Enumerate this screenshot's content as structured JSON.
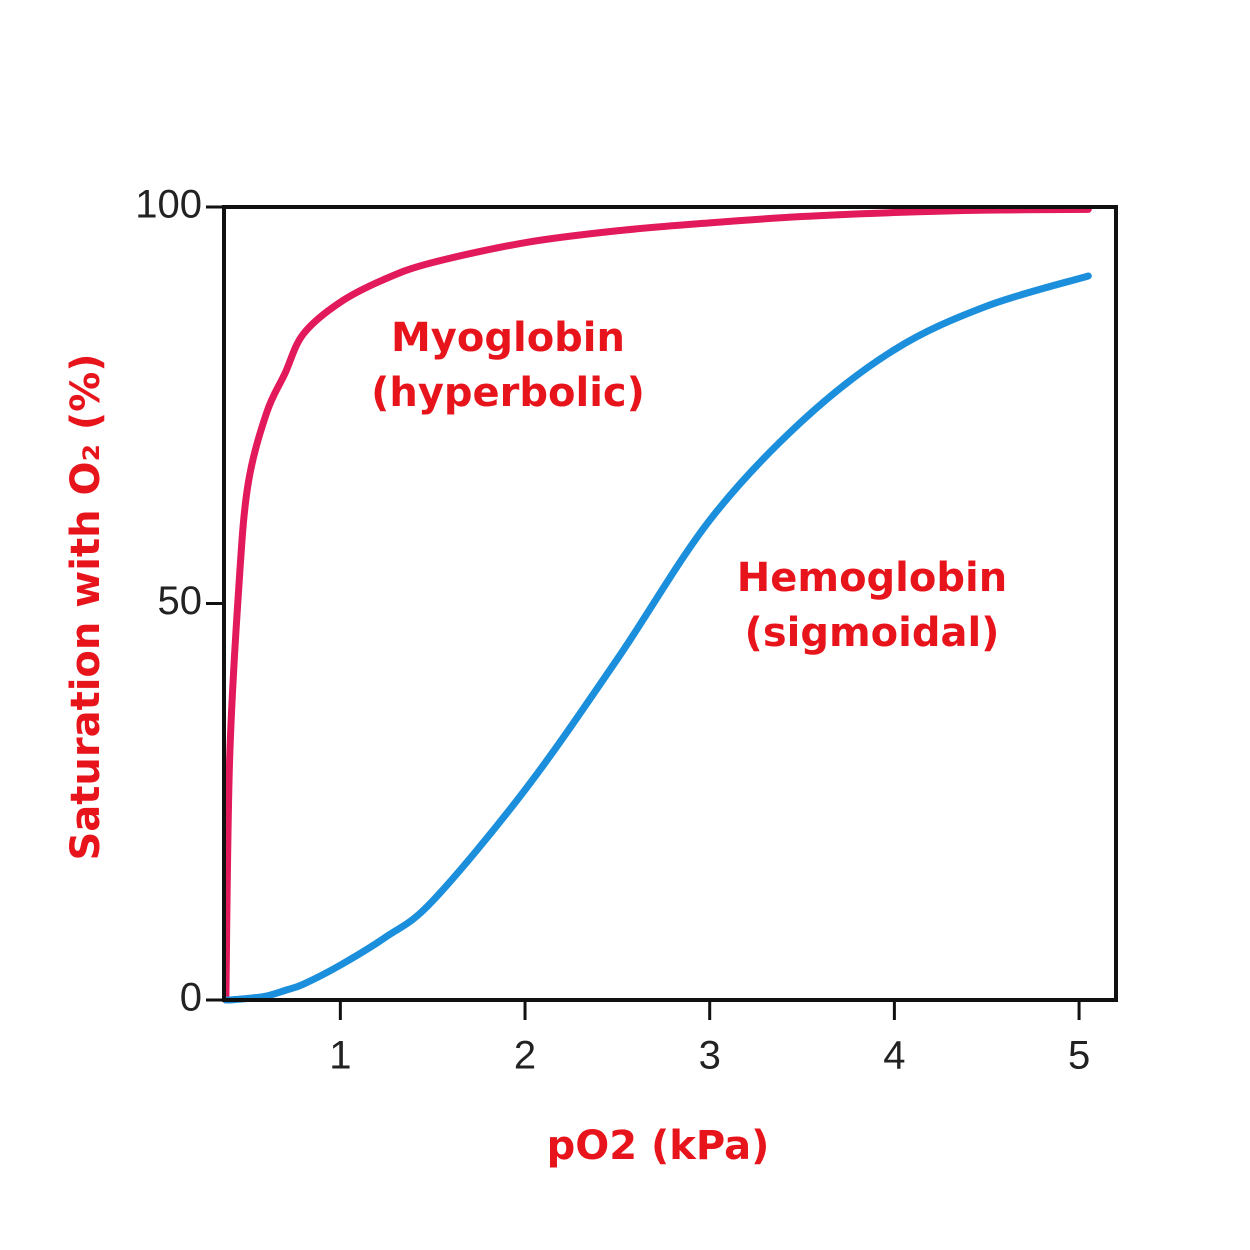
{
  "chart_data": {
    "type": "line",
    "x_label": "pO2 (kPa)",
    "y_label": "Saturation with O₂ (%)",
    "x": [
      0.38,
      0.4,
      0.45,
      0.5,
      0.6,
      0.7,
      0.8,
      1.0,
      1.25,
      1.5,
      2,
      2.5,
      3,
      3.5,
      4,
      4.5,
      5.05
    ],
    "series": [
      {
        "name": "Myoglobin",
        "note": "(hyperbolic)",
        "color": "#e2195a",
        "values": [
          0,
          30,
          52,
          65,
          74,
          79,
          84,
          88,
          91,
          93,
          95.5,
          97,
          98,
          98.8,
          99.3,
          99.6,
          99.7
        ]
      },
      {
        "name": "Hemoglobin",
        "note": "(sigmoidal)",
        "color": "#1b8fdc",
        "values": [
          0,
          0,
          0.1,
          0.2,
          0.5,
          1.2,
          2,
          4.4,
          8,
          12.5,
          26.5,
          43,
          60.5,
          73,
          82,
          87.5,
          91.3
        ]
      }
    ],
    "xlim": [
      0.37,
      5.2
    ],
    "ylim": [
      0,
      100
    ],
    "xticks": [
      1,
      2,
      3,
      4,
      5
    ],
    "yticks": [
      0,
      50,
      100
    ],
    "grid": false
  }
}
